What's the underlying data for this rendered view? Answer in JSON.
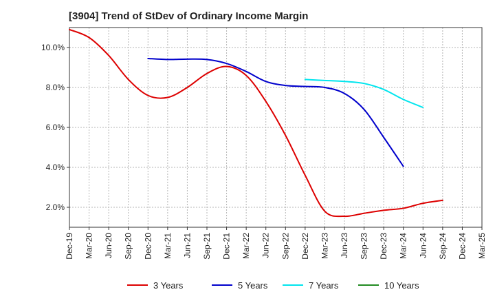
{
  "chart_data": {
    "type": "line",
    "title": "[3904]  Trend of StDev of Ordinary Income Margin",
    "xlabel": "",
    "ylabel": "",
    "x_ticks": [
      "Dec-19",
      "Mar-20",
      "Jun-20",
      "Sep-20",
      "Dec-20",
      "Mar-21",
      "Jun-21",
      "Sep-21",
      "Dec-21",
      "Mar-22",
      "Jun-22",
      "Sep-22",
      "Dec-22",
      "Mar-23",
      "Jun-23",
      "Sep-23",
      "Dec-23",
      "Mar-24",
      "Jun-24",
      "Sep-24",
      "Dec-24",
      "Mar-25"
    ],
    "y_ticks": [
      2.0,
      4.0,
      6.0,
      8.0,
      10.0
    ],
    "y_tick_labels": [
      "2.0%",
      "4.0%",
      "6.0%",
      "8.0%",
      "10.0%"
    ],
    "ylim": [
      1.0,
      11.0
    ],
    "grid": true,
    "legend_position": "bottom",
    "series": [
      {
        "name": "3 Years",
        "color": "#dd0000",
        "start_index": 0,
        "values": [
          10.9,
          10.5,
          9.6,
          8.4,
          7.6,
          7.5,
          8.0,
          8.7,
          9.05,
          8.6,
          7.3,
          5.6,
          3.6,
          1.8,
          1.55,
          1.7,
          1.85,
          1.95,
          2.2,
          2.35
        ]
      },
      {
        "name": "5 Years",
        "color": "#0000cc",
        "start_index": 4,
        "values": [
          9.45,
          9.4,
          9.42,
          9.4,
          9.2,
          8.8,
          8.3,
          8.1,
          8.05,
          8.0,
          7.7,
          6.9,
          5.5,
          4.05
        ]
      },
      {
        "name": "7 Years",
        "color": "#00e5ee",
        "start_index": 12,
        "values": [
          8.4,
          8.35,
          8.3,
          8.2,
          7.9,
          7.4,
          7.0
        ]
      },
      {
        "name": "10 Years",
        "color": "#228b22",
        "start_index": 0,
        "values": []
      }
    ]
  }
}
